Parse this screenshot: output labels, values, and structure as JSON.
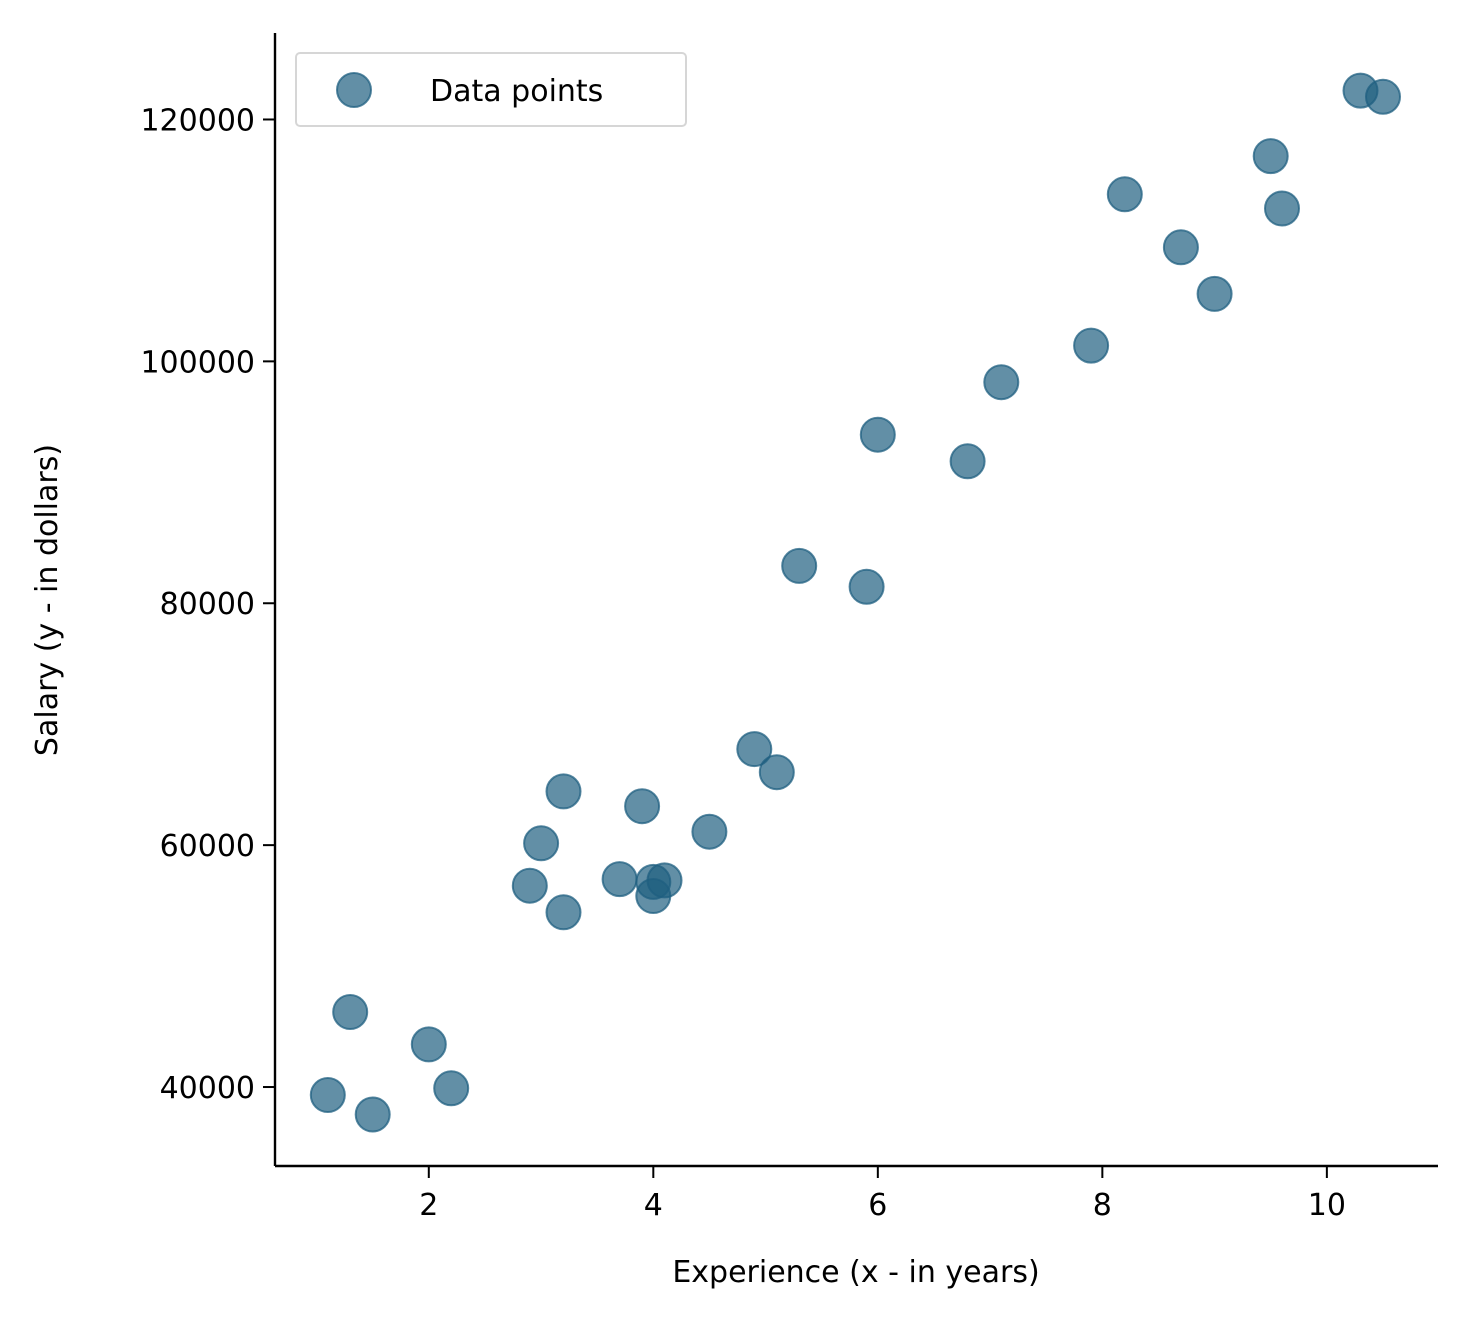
{
  "chart_data": {
    "type": "scatter",
    "title": "",
    "xlabel": "Experience (x - in years)",
    "ylabel": "Salary (y - in dollars)",
    "xlim": [
      0.63,
      10.99
    ],
    "ylim": [
      33470,
      127150
    ],
    "xticks": [
      2,
      4,
      6,
      8,
      10
    ],
    "yticks": [
      40000,
      60000,
      80000,
      100000,
      120000
    ],
    "xtick_labels": [
      "2",
      "4",
      "6",
      "8",
      "10"
    ],
    "ytick_labels": [
      "40000",
      "60000",
      "80000",
      "100000",
      "120000"
    ],
    "grid": false,
    "legend": {
      "position": "upper-left",
      "entries": [
        "Data points"
      ]
    },
    "marker_color": "#1f5f80",
    "series": [
      {
        "name": "Data points",
        "points": [
          {
            "x": 1.1,
            "y": 39343
          },
          {
            "x": 1.3,
            "y": 46205
          },
          {
            "x": 1.5,
            "y": 37731
          },
          {
            "x": 2.0,
            "y": 43525
          },
          {
            "x": 2.2,
            "y": 39891
          },
          {
            "x": 2.9,
            "y": 56642
          },
          {
            "x": 3.0,
            "y": 60150
          },
          {
            "x": 3.2,
            "y": 54445
          },
          {
            "x": 3.2,
            "y": 64445
          },
          {
            "x": 3.7,
            "y": 57189
          },
          {
            "x": 3.9,
            "y": 63218
          },
          {
            "x": 4.0,
            "y": 55794
          },
          {
            "x": 4.0,
            "y": 56957
          },
          {
            "x": 4.1,
            "y": 57081
          },
          {
            "x": 4.5,
            "y": 61111
          },
          {
            "x": 4.9,
            "y": 67938
          },
          {
            "x": 5.1,
            "y": 66029
          },
          {
            "x": 5.3,
            "y": 83088
          },
          {
            "x": 5.9,
            "y": 81363
          },
          {
            "x": 6.0,
            "y": 93940
          },
          {
            "x": 6.8,
            "y": 91738
          },
          {
            "x": 7.1,
            "y": 98273
          },
          {
            "x": 7.9,
            "y": 101302
          },
          {
            "x": 8.2,
            "y": 113812
          },
          {
            "x": 8.7,
            "y": 109431
          },
          {
            "x": 9.0,
            "y": 105582
          },
          {
            "x": 9.5,
            "y": 116969
          },
          {
            "x": 9.6,
            "y": 112635
          },
          {
            "x": 10.3,
            "y": 122391
          },
          {
            "x": 10.5,
            "y": 121872
          }
        ]
      }
    ]
  }
}
